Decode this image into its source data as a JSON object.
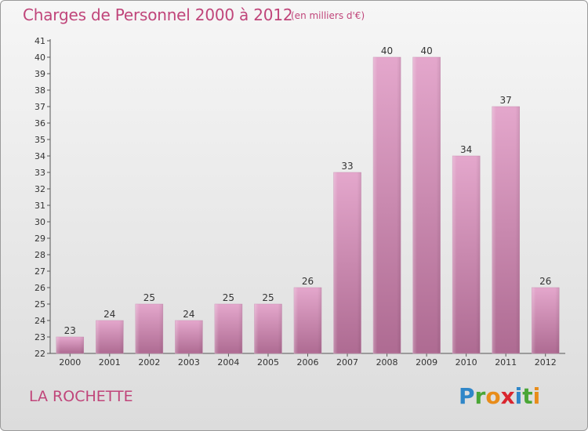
{
  "header": {
    "title": "Charges de Personnel 2000 à 2012",
    "subtitle": "(en milliers d'€)"
  },
  "footer": {
    "commune": "LA ROCHETTE",
    "logo_text": "Proxiti"
  },
  "colors": {
    "title": "#c0457a",
    "bar_top": "#e4a7cc",
    "bar_bottom": "#ae6b92",
    "background_top": "#f6f6f6",
    "background_bottom": "#dcdcdc"
  },
  "chart_data": {
    "type": "bar",
    "title": "Charges de Personnel 2000 à 2012",
    "subtitle": "(en milliers d'€)",
    "xlabel": "",
    "ylabel": "",
    "categories": [
      "2000",
      "2001",
      "2002",
      "2003",
      "2004",
      "2005",
      "2006",
      "2007",
      "2008",
      "2009",
      "2010",
      "2011",
      "2012"
    ],
    "values": [
      23,
      24,
      25,
      24,
      25,
      25,
      26,
      33,
      40,
      40,
      34,
      37,
      26
    ],
    "ylim": [
      22,
      41
    ],
    "yticks": [
      22,
      23,
      24,
      25,
      26,
      27,
      28,
      29,
      30,
      31,
      32,
      33,
      34,
      35,
      36,
      37,
      38,
      39,
      40,
      41
    ],
    "grid": false,
    "legend": "none"
  }
}
